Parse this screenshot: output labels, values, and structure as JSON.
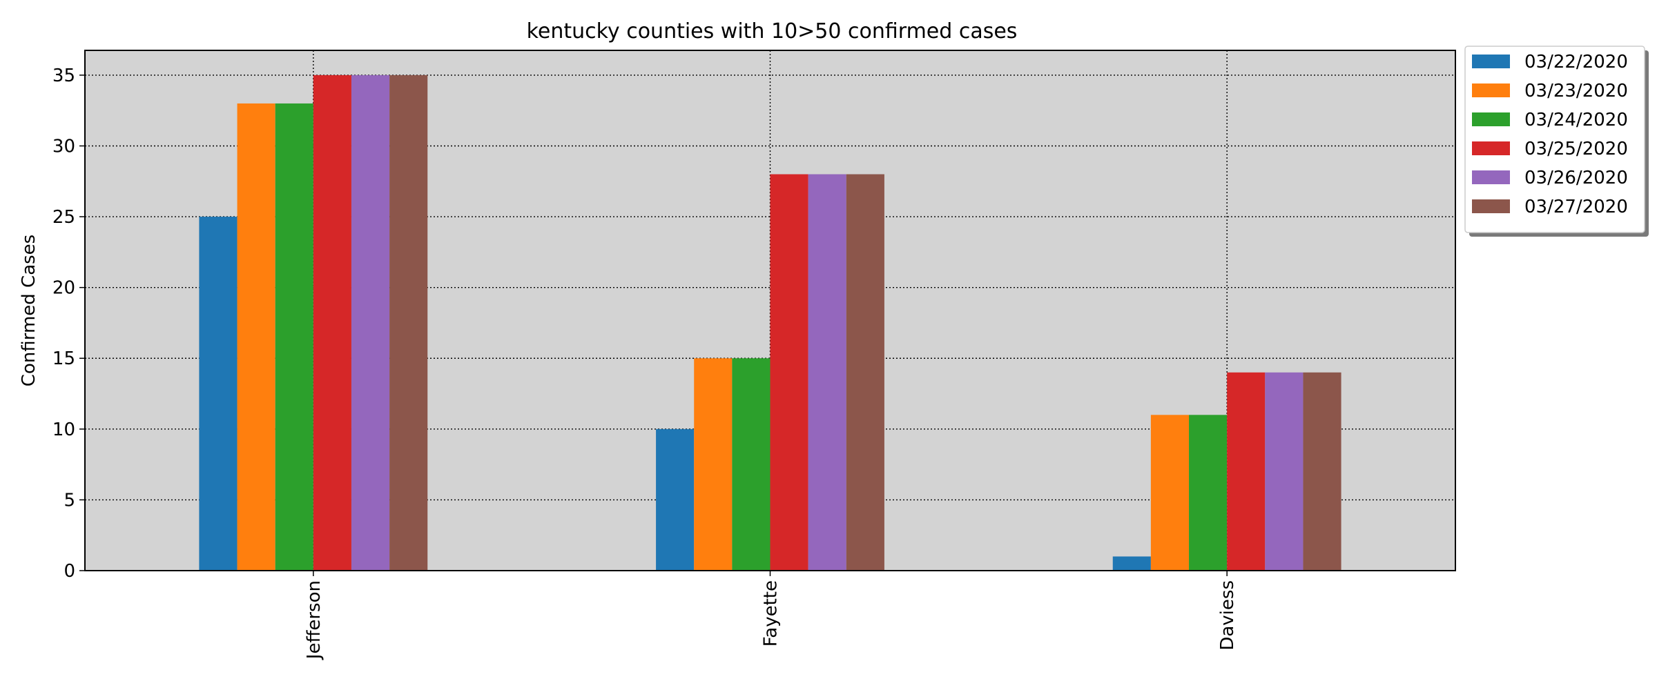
{
  "chart_data": {
    "type": "bar",
    "title": "kentucky counties with 10>50 confirmed cases",
    "xlabel": "",
    "ylabel": "Confirmed Cases",
    "categories": [
      "Jefferson",
      "Fayette",
      "Daviess"
    ],
    "series": [
      {
        "name": "03/22/2020",
        "color": "#1f77b4",
        "values": [
          25,
          10,
          1
        ]
      },
      {
        "name": "03/23/2020",
        "color": "#ff7f0e",
        "values": [
          33,
          15,
          11
        ]
      },
      {
        "name": "03/24/2020",
        "color": "#2ca02c",
        "values": [
          33,
          15,
          11
        ]
      },
      {
        "name": "03/25/2020",
        "color": "#d62728",
        "values": [
          35,
          28,
          14
        ]
      },
      {
        "name": "03/26/2020",
        "color": "#9467bd",
        "values": [
          35,
          28,
          14
        ]
      },
      {
        "name": "03/27/2020",
        "color": "#8c564b",
        "values": [
          35,
          28,
          14
        ]
      }
    ],
    "ylim": [
      0,
      36.75
    ],
    "yticks": [
      0,
      5,
      10,
      15,
      20,
      25,
      30,
      35
    ],
    "grid": true,
    "grid_style": "dotted",
    "plot_background": "#d3d3d3",
    "legend_placement": "outside-top-right",
    "x_tick_rotation": "vertical"
  }
}
